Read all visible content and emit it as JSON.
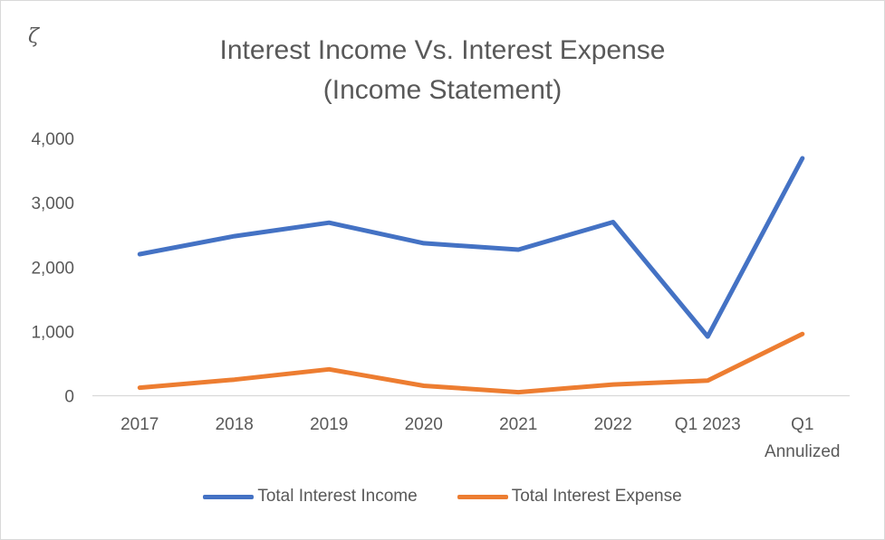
{
  "brand": {
    "symbol": "ζ"
  },
  "chart_data": {
    "type": "line",
    "title": "Interest Income Vs. Interest Expense",
    "subtitle": "(Income Statement)",
    "categories": [
      "2017",
      "2018",
      "2019",
      "2020",
      "2021",
      "2022",
      "Q1 2023",
      "Q1 Annulized"
    ],
    "category_lines": [
      [
        "2017"
      ],
      [
        "2018"
      ],
      [
        "2019"
      ],
      [
        "2020"
      ],
      [
        "2021"
      ],
      [
        "2022"
      ],
      [
        "Q1 2023"
      ],
      [
        "Q1",
        "Annulized"
      ]
    ],
    "series": [
      {
        "name": "Total Interest Income",
        "color": "#4472C4",
        "values": [
          2200,
          2480,
          2690,
          2370,
          2270,
          2700,
          920,
          3690
        ]
      },
      {
        "name": "Total Interest Expense",
        "color": "#ED7D31",
        "values": [
          125,
          250,
          410,
          155,
          55,
          175,
          235,
          960
        ]
      }
    ],
    "ylim": [
      0,
      4000
    ],
    "yticks": [
      0,
      1000,
      2000,
      3000,
      4000
    ],
    "ytick_labels": [
      "0",
      "1,000",
      "2,000",
      "3,000",
      "4,000"
    ],
    "grid": false,
    "legend_position": "bottom"
  }
}
